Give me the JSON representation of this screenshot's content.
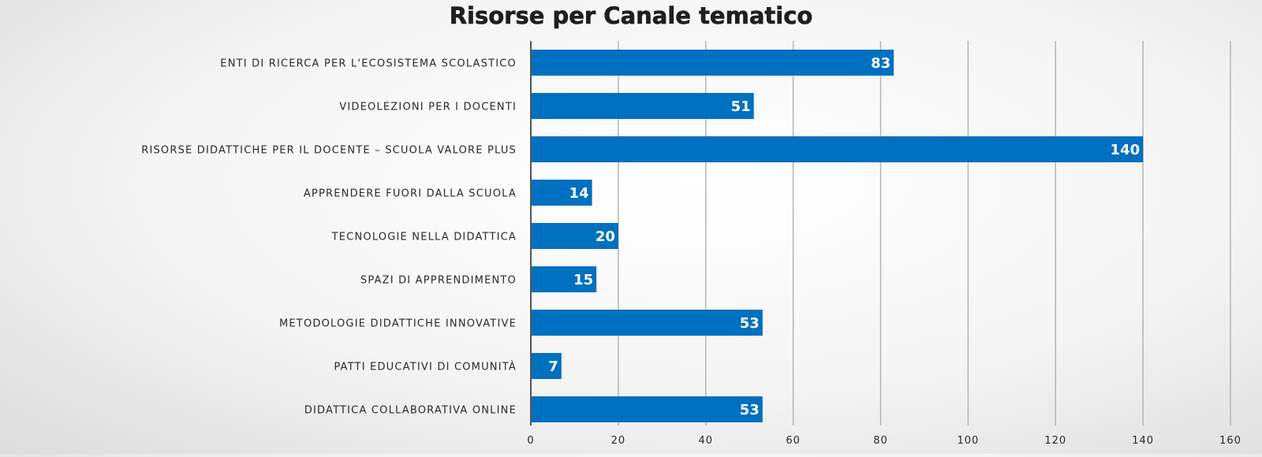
{
  "chart_data": {
    "type": "bar",
    "orientation": "horizontal",
    "title": "Risorse per Canale tematico",
    "categories": [
      "ENTI DI RICERCA PER L'ECOSISTEMA SCOLASTICO",
      "VIDEOLEZIONI PER I DOCENTI",
      "RISORSE DIDATTICHE PER IL DOCENTE  – SCUOLA VALORE PLUS",
      "APPRENDERE FUORI DALLA SCUOLA",
      "TECNOLOGIE NELLA DIDATTICA",
      "SPAZI DI APPRENDIMENTO",
      "METODOLOGIE DIDATTICHE INNOVATIVE",
      "PATTI EDUCATIVI DI COMUNITÀ",
      "DIDATTICA COLLABORATIVA ONLINE"
    ],
    "values": [
      83,
      51,
      140,
      14,
      20,
      15,
      53,
      7,
      53
    ],
    "xlim": [
      0,
      160
    ],
    "xticks": [
      0,
      20,
      40,
      60,
      80,
      100,
      120,
      140,
      160
    ],
    "xlabel": "",
    "ylabel": "",
    "grid": "vertical",
    "legend": "none",
    "colors": {
      "bar": "#0070C0",
      "data_label": "#ffffff",
      "grid": "#b5b5b5"
    }
  }
}
